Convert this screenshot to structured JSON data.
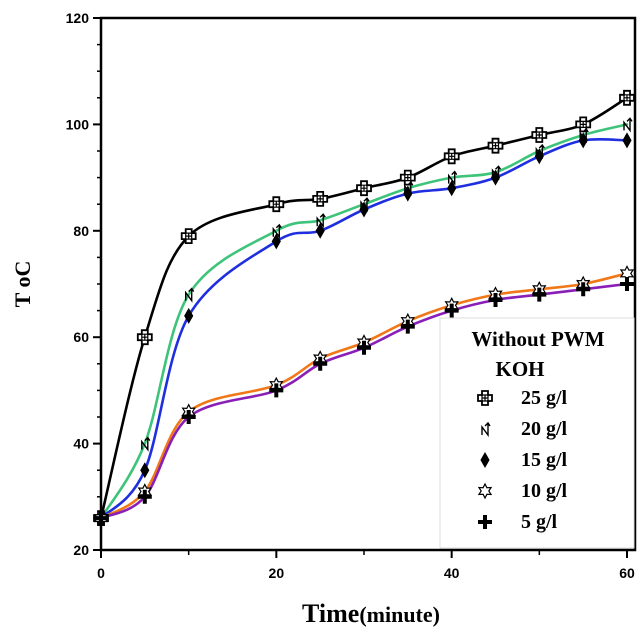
{
  "chart_data": {
    "type": "line",
    "xlabel_main": "Time",
    "xlabel_unit": "(minute)",
    "ylabel": "T oC",
    "xlim": [
      0,
      60
    ],
    "ylim": [
      20,
      120
    ],
    "x_ticks": [
      0,
      20,
      40,
      60
    ],
    "y_ticks": [
      20,
      40,
      60,
      80,
      100,
      120
    ],
    "grid": false,
    "legend_placement": "bottom-right",
    "legend_title": [
      "Without PWM",
      "KOH"
    ],
    "x": [
      0,
      5,
      10,
      20,
      25,
      30,
      35,
      40,
      45,
      50,
      55,
      60
    ],
    "series": [
      {
        "name": "25 g/l",
        "marker": "square-plus",
        "color": "#000000",
        "values": [
          26,
          60,
          79,
          85,
          86,
          88,
          90,
          94,
          96,
          98,
          100,
          105
        ]
      },
      {
        "name": "20 g/l",
        "marker": "arrow",
        "color": "#3ec47a",
        "values": [
          26,
          40,
          68,
          80,
          82,
          85,
          88,
          90,
          91,
          95,
          98,
          100
        ]
      },
      {
        "name": "15 g/l",
        "marker": "diamond",
        "color": "#1f2fe0",
        "values": [
          26,
          35,
          64,
          78,
          80,
          84,
          87,
          88,
          90,
          94,
          97,
          97
        ]
      },
      {
        "name": "10 g/l",
        "marker": "star",
        "color": "#f07818",
        "values": [
          26,
          31,
          46,
          51,
          56,
          59,
          63,
          66,
          68,
          69,
          70,
          72
        ]
      },
      {
        "name": "5 g/l",
        "marker": "plus",
        "color": "#8a1fb8",
        "values": [
          26,
          30,
          45,
          50,
          55,
          58,
          62,
          65,
          67,
          68,
          69,
          70
        ]
      }
    ]
  }
}
